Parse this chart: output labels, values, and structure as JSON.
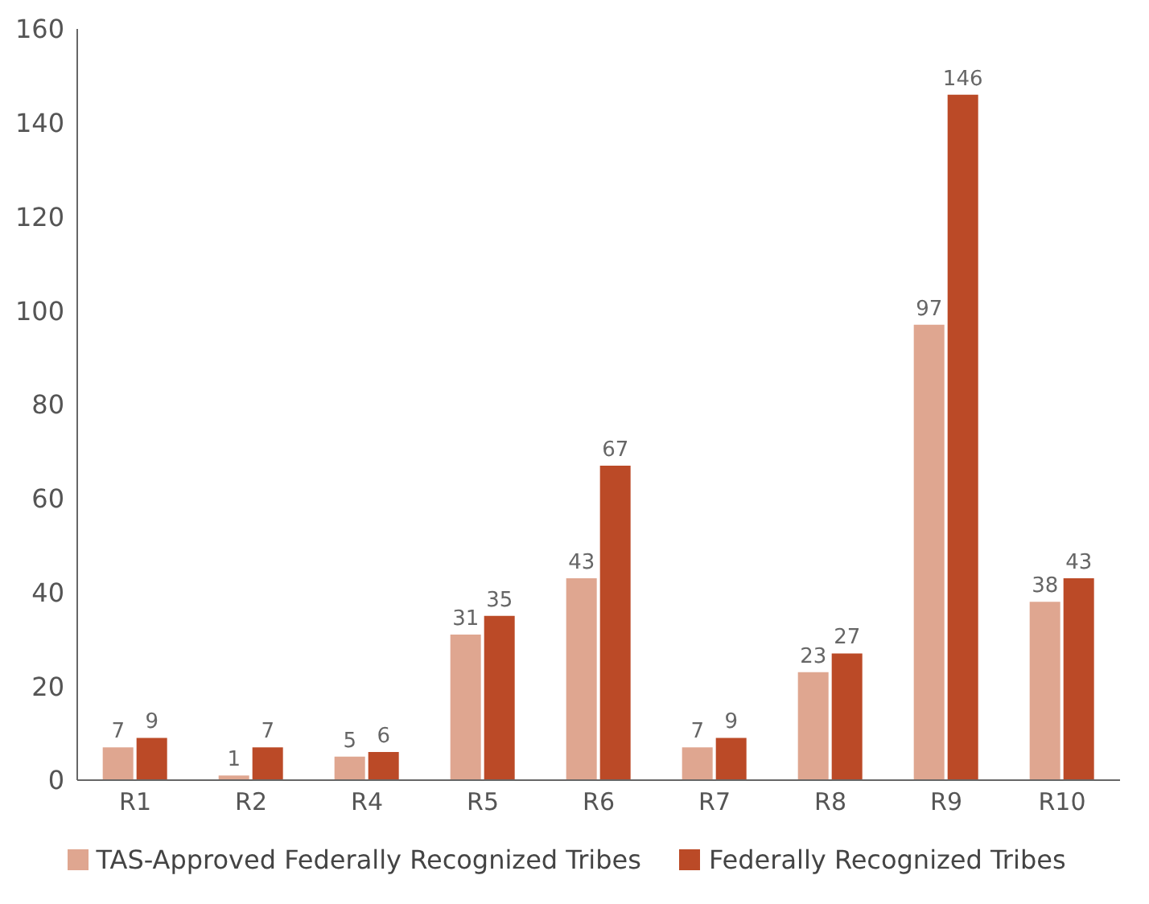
{
  "chart_data": {
    "type": "bar",
    "categories": [
      "R1",
      "R2",
      "R4",
      "R5",
      "R6",
      "R7",
      "R8",
      "R9",
      "R10"
    ],
    "series": [
      {
        "name": "TAS-Approved Federally Recognized Tribes",
        "color": "#dfa690",
        "values": [
          7,
          1,
          5,
          31,
          43,
          7,
          23,
          97,
          38
        ]
      },
      {
        "name": "Federally Recognized Tribes",
        "color": "#bb4a27",
        "values": [
          9,
          7,
          6,
          35,
          67,
          9,
          27,
          146,
          43
        ]
      }
    ],
    "ylim": [
      0,
      160
    ],
    "yticks": [
      0,
      20,
      40,
      60,
      80,
      100,
      120,
      140,
      160
    ],
    "grid": false,
    "legend": "bottom",
    "data_labels": true
  }
}
